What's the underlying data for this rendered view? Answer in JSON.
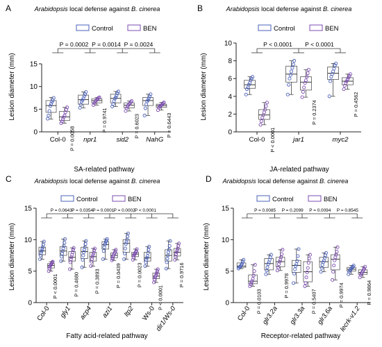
{
  "colors": {
    "control": "#4a60b8",
    "ben": "#7b4bb0",
    "axis": "#222222",
    "box_control": "#8c9bd6",
    "box_ben": "#a98bd0"
  },
  "chart_data": [
    {
      "panel": "A",
      "type": "box",
      "title_italic": "Arabidopsis",
      "title_mid": " local defense against ",
      "title_italic2": "B. cinerea",
      "xlabel": "SA-related pathway",
      "ylabel": "Lesion diameter (mm)",
      "ylim": [
        0,
        15
      ],
      "yticks": [
        0,
        5,
        10,
        15
      ],
      "legend": [
        "Control",
        "BEN"
      ],
      "categories": [
        "Col-0",
        "npr1",
        "sid2",
        "NahG"
      ],
      "italic_categories": [
        false,
        true,
        true,
        true
      ],
      "series": [
        {
          "name": "Control",
          "boxes": [
            {
              "min": 2.8,
              "q1": 4.3,
              "median": 5.8,
              "q3": 6.9,
              "max": 7.6,
              "points": [
                2.9,
                3.6,
                4.6,
                5.7,
                6.2,
                6.6,
                7.0,
                7.5
              ]
            },
            {
              "min": 5.3,
              "q1": 6.1,
              "median": 7.1,
              "q3": 8.1,
              "max": 8.8,
              "points": [
                5.3,
                6.0,
                6.7,
                7.0,
                7.4,
                7.9,
                8.3,
                8.8
              ]
            },
            {
              "min": 5.6,
              "q1": 6.4,
              "median": 7.4,
              "q3": 8.3,
              "max": 8.9,
              "points": [
                5.6,
                6.1,
                6.8,
                7.3,
                7.6,
                8.0,
                8.5,
                8.9
              ]
            },
            {
              "min": 3.6,
              "q1": 5.8,
              "median": 6.9,
              "q3": 7.6,
              "max": 8.3,
              "points": [
                3.6,
                5.2,
                6.1,
                6.7,
                7.0,
                7.4,
                7.8,
                8.3
              ]
            }
          ]
        },
        {
          "name": "BEN",
          "boxes": [
            {
              "min": 1.9,
              "q1": 2.5,
              "median": 3.3,
              "q3": 4.5,
              "max": 5.4,
              "points": [
                1.9,
                2.3,
                2.8,
                3.2,
                3.6,
                4.3,
                4.9,
                5.4
              ]
            },
            {
              "min": 5.9,
              "q1": 6.4,
              "median": 6.9,
              "q3": 7.3,
              "max": 7.6,
              "points": [
                5.9,
                6.3,
                6.6,
                6.9,
                7.1,
                7.3,
                7.5,
                7.6
              ]
            },
            {
              "min": 4.6,
              "q1": 5.3,
              "median": 5.9,
              "q3": 6.4,
              "max": 6.8,
              "points": [
                4.6,
                5.2,
                5.6,
                5.9,
                6.1,
                6.3,
                6.6,
                6.8
              ]
            },
            {
              "min": 4.8,
              "q1": 5.4,
              "median": 5.8,
              "q3": 6.1,
              "max": 6.5,
              "points": [
                4.8,
                5.3,
                5.6,
                5.8,
                5.9,
                6.1,
                6.3,
                6.5
              ]
            }
          ]
        }
      ],
      "pvalues_within": [
        "P = 0.0058",
        "P = 0.9741",
        "P = 0.6023",
        "P = 0.6443"
      ],
      "pvalues_between": [
        "P = 0.0002",
        "P = 0.0014",
        "P = 0.0024"
      ]
    },
    {
      "panel": "B",
      "type": "box",
      "title_italic": "Arabidopsis",
      "title_mid": " local defense against ",
      "title_italic2": "B. cinerea",
      "xlabel": "JA-related pathway",
      "ylabel": "Lesion diameter (mm)",
      "ylim": [
        0,
        10
      ],
      "yticks": [
        0,
        2,
        4,
        6,
        8,
        10
      ],
      "legend": [
        "Control",
        "BEN"
      ],
      "categories": [
        "Col-0",
        "jar1",
        "myc2"
      ],
      "italic_categories": [
        false,
        true,
        true
      ],
      "series": [
        {
          "name": "Control",
          "boxes": [
            {
              "min": 4.2,
              "q1": 4.9,
              "median": 5.3,
              "q3": 5.8,
              "max": 6.2,
              "points": [
                4.2,
                4.8,
                5.0,
                5.3,
                5.5,
                5.8,
                6.0,
                6.2
              ]
            },
            {
              "min": 4.2,
              "q1": 5.6,
              "median": 6.5,
              "q3": 7.4,
              "max": 8.0,
              "points": [
                4.2,
                5.3,
                6.0,
                6.4,
                6.8,
                7.2,
                7.6,
                8.0
              ]
            },
            {
              "min": 4.0,
              "q1": 5.9,
              "median": 6.6,
              "q3": 7.3,
              "max": 7.7,
              "points": [
                4.0,
                5.7,
                6.2,
                6.5,
                6.8,
                7.1,
                7.5,
                7.7
              ]
            }
          ]
        },
        {
          "name": "BEN",
          "boxes": [
            {
              "min": 0.8,
              "q1": 1.4,
              "median": 1.9,
              "q3": 2.5,
              "max": 3.3,
              "points": [
                0.8,
                1.2,
                1.6,
                1.9,
                2.2,
                2.5,
                2.9,
                3.3
              ]
            },
            {
              "min": 3.9,
              "q1": 4.7,
              "median": 5.6,
              "q3": 6.2,
              "max": 7.0,
              "points": [
                3.9,
                4.5,
                5.0,
                5.5,
                5.8,
                6.2,
                6.6,
                7.0
              ]
            },
            {
              "min": 4.8,
              "q1": 5.3,
              "median": 5.7,
              "q3": 6.1,
              "max": 6.5,
              "points": [
                4.8,
                5.2,
                5.5,
                5.7,
                5.9,
                6.1,
                6.3,
                6.5
              ]
            }
          ]
        }
      ],
      "pvalues_within": [
        "P < 0.0001",
        "P = 0.2374",
        "P = 0.4562"
      ],
      "pvalues_between": [
        "P < 0.0001",
        "P < 0.0001"
      ]
    },
    {
      "panel": "C",
      "type": "box",
      "title_italic": "Arabidopsis",
      "title_mid": " local defense against ",
      "title_italic2": "B. cinerea",
      "xlabel": "Fatty acid-related pathway",
      "ylabel": "Lesion diameter (mm)",
      "ylim": [
        0,
        15
      ],
      "yticks": [
        0,
        5,
        10,
        15
      ],
      "legend": [
        "Control",
        "BEN"
      ],
      "categories": [
        "Col-0",
        "gly1",
        "acp4",
        "azi1",
        "ltp2",
        "Ws-0",
        "dir1/Ws-0"
      ],
      "italic_categories": [
        false,
        true,
        true,
        true,
        true,
        false,
        true
      ],
      "series": [
        {
          "name": "Control",
          "boxes": [
            {
              "min": 6.9,
              "q1": 7.6,
              "median": 8.2,
              "q3": 8.8,
              "max": 9.7,
              "points": [
                6.9,
                7.5,
                7.9,
                8.2,
                8.5,
                8.8,
                9.2,
                9.7
              ]
            },
            {
              "min": 6.6,
              "q1": 7.5,
              "median": 8.2,
              "q3": 8.9,
              "max": 10.1,
              "points": [
                6.6,
                7.3,
                7.8,
                8.2,
                8.6,
                9.0,
                9.5,
                10.1
              ]
            },
            {
              "min": 5.6,
              "q1": 7.0,
              "median": 8.1,
              "q3": 8.8,
              "max": 9.8,
              "points": [
                5.6,
                6.8,
                7.5,
                8.0,
                8.4,
                8.8,
                9.3,
                9.8
              ]
            },
            {
              "min": 6.9,
              "q1": 8.5,
              "median": 9.2,
              "q3": 9.7,
              "max": 10.1,
              "points": [
                6.9,
                8.2,
                8.8,
                9.2,
                9.4,
                9.7,
                9.9,
                10.1
              ]
            },
            {
              "min": 6.9,
              "q1": 8.0,
              "median": 9.4,
              "q3": 10.0,
              "max": 11.0,
              "points": [
                6.9,
                7.8,
                8.6,
                9.3,
                9.6,
                10.0,
                10.5,
                11.0
              ]
            },
            {
              "min": 5.8,
              "q1": 6.6,
              "median": 7.1,
              "q3": 8.0,
              "max": 8.9,
              "points": [
                5.8,
                6.4,
                6.8,
                7.1,
                7.4,
                7.9,
                8.4,
                8.9
              ]
            },
            {
              "min": 5.4,
              "q1": 6.6,
              "median": 7.5,
              "q3": 8.4,
              "max": 9.8,
              "points": [
                5.4,
                6.4,
                7.0,
                7.5,
                8.0,
                8.4,
                9.0,
                9.8
              ]
            }
          ]
        },
        {
          "name": "BEN",
          "boxes": [
            {
              "min": 5.0,
              "q1": 5.5,
              "median": 5.9,
              "q3": 6.2,
              "max": 6.5,
              "points": [
                5.0,
                5.4,
                5.7,
                5.9,
                6.0,
                6.2,
                6.4,
                6.5
              ]
            },
            {
              "min": 5.3,
              "q1": 6.6,
              "median": 7.2,
              "q3": 8.1,
              "max": 8.7,
              "points": [
                5.3,
                6.4,
                6.9,
                7.2,
                7.6,
                8.0,
                8.4,
                8.7
              ]
            },
            {
              "min": 5.8,
              "q1": 6.6,
              "median": 7.3,
              "q3": 8.0,
              "max": 8.6,
              "points": [
                5.8,
                6.5,
                6.9,
                7.3,
                7.6,
                7.9,
                8.3,
                8.6
              ]
            },
            {
              "min": 6.7,
              "q1": 7.1,
              "median": 7.5,
              "q3": 7.9,
              "max": 8.4,
              "points": [
                6.7,
                7.0,
                7.3,
                7.5,
                7.7,
                7.9,
                8.1,
                8.4
              ]
            },
            {
              "min": 6.8,
              "q1": 7.3,
              "median": 7.7,
              "q3": 8.0,
              "max": 8.5,
              "points": [
                6.8,
                7.2,
                7.5,
                7.7,
                7.8,
                8.0,
                8.2,
                8.5
              ]
            },
            {
              "min": 3.2,
              "q1": 3.8,
              "median": 4.2,
              "q3": 4.7,
              "max": 5.3,
              "points": [
                3.2,
                3.7,
                4.0,
                4.2,
                4.4,
                4.7,
                5.0,
                5.3
              ]
            },
            {
              "min": 6.8,
              "q1": 7.4,
              "median": 8.0,
              "q3": 8.6,
              "max": 9.4,
              "points": [
                6.8,
                7.3,
                7.7,
                8.0,
                8.3,
                8.6,
                9.0,
                9.4
              ]
            }
          ]
        }
      ],
      "pvalues_within": [
        "P < 0.0001",
        "P = 0.4680",
        "P = 0.3893",
        "P = 0.0439",
        "P = 0.0023",
        "P < 0.0001",
        "P = 0.9716"
      ],
      "pvalues_between": [
        "P = 0.0643",
        "P = 0.0354",
        "P = 0.0001",
        "P = 0.0002",
        "P < 0.0001"
      ]
    },
    {
      "panel": "D",
      "type": "box",
      "title_italic": "Arabidopsis",
      "title_mid": " local defense against ",
      "title_italic2": "B. cinerea",
      "xlabel": "Receptor-related pathway",
      "ylabel": "Lesion diameter (mm)",
      "ylim": [
        0,
        15
      ],
      "yticks": [
        0,
        5,
        10,
        15
      ],
      "legend": [
        "Control",
        "BEN"
      ],
      "categories": [
        "Col-0",
        "glr3.2a",
        "glr3.3a",
        "glr3.6a",
        "lecrk-v1.2"
      ],
      "italic_categories": [
        false,
        true,
        true,
        true,
        true
      ],
      "series": [
        {
          "name": "Control",
          "boxes": [
            {
              "min": 5.4,
              "q1": 5.6,
              "median": 5.8,
              "q3": 6.3,
              "max": 6.8,
              "points": [
                5.4,
                5.6,
                5.7,
                5.8,
                6.0,
                6.2,
                6.5,
                6.8
              ]
            },
            {
              "min": 4.5,
              "q1": 5.2,
              "median": 6.2,
              "q3": 7.0,
              "max": 7.6,
              "points": [
                4.5,
                5.1,
                5.6,
                6.1,
                6.4,
                6.8,
                7.2,
                7.6
              ]
            },
            {
              "min": 3.1,
              "q1": 4.8,
              "median": 5.9,
              "q3": 6.7,
              "max": 8.5,
              "points": [
                3.1,
                4.6,
                5.3,
                5.8,
                6.1,
                6.6,
                7.4,
                8.5
              ]
            },
            {
              "min": 4.9,
              "q1": 5.6,
              "median": 6.5,
              "q3": 7.2,
              "max": 7.9,
              "points": [
                4.9,
                5.5,
                6.0,
                6.4,
                6.7,
                7.1,
                7.5,
                7.9
              ]
            },
            {
              "min": 4.5,
              "q1": 5.0,
              "median": 5.3,
              "q3": 5.6,
              "max": 5.9,
              "points": [
                4.5,
                4.9,
                5.1,
                5.3,
                5.4,
                5.6,
                5.7,
                5.9
              ]
            }
          ]
        },
        {
          "name": "BEN",
          "boxes": [
            {
              "min": 2.6,
              "q1": 3.0,
              "median": 3.4,
              "q3": 4.4,
              "max": 6.0,
              "points": [
                2.6,
                2.9,
                3.2,
                3.4,
                3.8,
                4.3,
                5.0,
                6.0
              ]
            },
            {
              "min": 5.1,
              "q1": 5.7,
              "median": 6.5,
              "q3": 7.2,
              "max": 8.4,
              "points": [
                5.1,
                5.6,
                6.1,
                6.5,
                6.8,
                7.2,
                7.7,
                8.4
              ]
            },
            {
              "min": 2.6,
              "q1": 3.3,
              "median": 4.9,
              "q3": 6.5,
              "max": 7.6,
              "points": [
                2.6,
                3.1,
                4.0,
                4.8,
                5.5,
                6.3,
                7.0,
                7.6
              ]
            },
            {
              "min": 3.6,
              "q1": 5.2,
              "median": 6.9,
              "q3": 7.6,
              "max": 8.8,
              "points": [
                3.6,
                4.9,
                5.9,
                6.7,
                7.2,
                7.6,
                8.1,
                8.8
              ]
            },
            {
              "min": 4.0,
              "q1": 4.5,
              "median": 4.8,
              "q3": 5.2,
              "max": 5.7,
              "points": [
                4.0,
                4.4,
                4.6,
                4.8,
                5.0,
                5.2,
                5.4,
                5.7
              ]
            }
          ]
        }
      ],
      "pvalues_within": [
        "P = 0.0103",
        "P = 0.9978",
        "P = 0.5407",
        "P = 0.9974",
        "P = 0.9864"
      ],
      "pvalues_between": [
        "P = 0.0085",
        "P = 0.2099",
        "P = 0.0094",
        "P = 0.8545"
      ]
    }
  ]
}
